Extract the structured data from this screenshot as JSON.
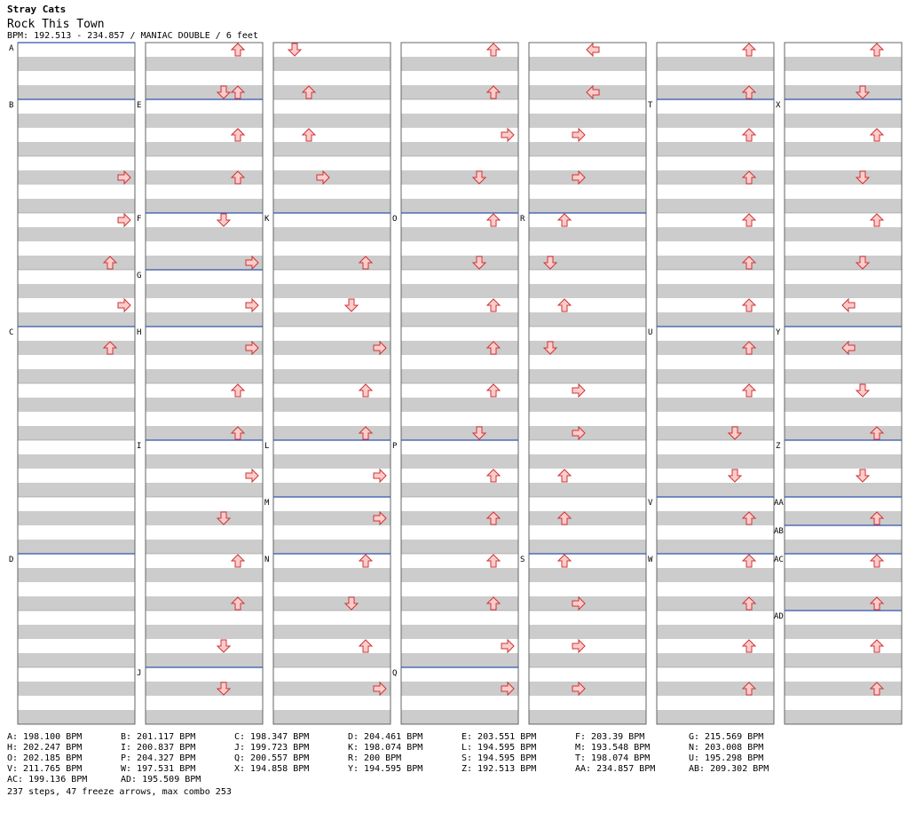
{
  "header": {
    "artist": "Stray Cats",
    "title": "Rock This Town",
    "info": "BPM: 192.513 - 234.857 / MANIAC DOUBLE / 6 feet"
  },
  "colors": {
    "arrow_fill": "#ffcccc",
    "arrow_stroke": "#cc3333",
    "freeze_fill": "#ccffcc",
    "freeze_stroke": "#339933",
    "stripe": "#cccccc",
    "marker": "#3355aa",
    "freeze_head_yellow": "#ffff33"
  },
  "sections": [
    {
      "label": "A",
      "col": 0,
      "beat": 0
    },
    {
      "label": "B",
      "col": 0,
      "beat": 4
    },
    {
      "label": "C",
      "col": 0,
      "beat": 20
    },
    {
      "label": "D",
      "col": 0,
      "beat": 36
    },
    {
      "label": "E",
      "col": 1,
      "beat": 4
    },
    {
      "label": "F",
      "col": 1,
      "beat": 12
    },
    {
      "label": "G",
      "col": 1,
      "beat": 16
    },
    {
      "label": "H",
      "col": 1,
      "beat": 20
    },
    {
      "label": "I",
      "col": 1,
      "beat": 28
    },
    {
      "label": "J",
      "col": 1,
      "beat": 44
    },
    {
      "label": "K",
      "col": 2,
      "beat": 12
    },
    {
      "label": "L",
      "col": 2,
      "beat": 28
    },
    {
      "label": "M",
      "col": 2,
      "beat": 32
    },
    {
      "label": "N",
      "col": 2,
      "beat": 36
    },
    {
      "label": "O",
      "col": 3,
      "beat": 12
    },
    {
      "label": "P",
      "col": 3,
      "beat": 28
    },
    {
      "label": "Q",
      "col": 3,
      "beat": 44
    },
    {
      "label": "R",
      "col": 4,
      "beat": 12
    },
    {
      "label": "S",
      "col": 4,
      "beat": 36
    },
    {
      "label": "T",
      "col": 5,
      "beat": 4
    },
    {
      "label": "U",
      "col": 5,
      "beat": 20
    },
    {
      "label": "V",
      "col": 5,
      "beat": 32
    },
    {
      "label": "W",
      "col": 5,
      "beat": 36
    },
    {
      "label": "X",
      "col": 6,
      "beat": 4
    },
    {
      "label": "Y",
      "col": 6,
      "beat": 20
    },
    {
      "label": "Z",
      "col": 6,
      "beat": 28
    },
    {
      "label": "AA",
      "col": 6,
      "beat": 32
    },
    {
      "label": "AB",
      "col": 6,
      "beat": 34
    },
    {
      "label": "AC",
      "col": 6,
      "beat": 36
    },
    {
      "label": "AD",
      "col": 6,
      "beat": 40
    }
  ],
  "notes": [
    [
      1,
      0,
      6
    ],
    [
      1,
      1,
      6
    ],
    [
      1,
      2,
      6
    ],
    [
      0,
      3,
      7
    ],
    [
      0,
      4,
      7
    ],
    [
      0,
      5,
      6
    ],
    [
      0,
      6,
      7
    ],
    [
      0,
      7,
      6
    ],
    [
      1,
      0,
      6
    ],
    [
      1,
      1,
      5
    ],
    [
      1,
      2,
      6
    ],
    [
      1,
      3,
      6
    ],
    [
      1,
      4,
      5
    ],
    [
      1,
      5,
      7
    ],
    [
      1,
      6,
      7
    ],
    [
      1,
      7,
      7
    ],
    [
      1,
      8,
      6
    ],
    [
      1,
      9,
      6
    ],
    [
      1,
      10,
      7
    ],
    [
      1,
      11,
      5
    ],
    [
      1,
      12,
      6
    ],
    [
      1,
      13,
      6
    ],
    [
      1,
      14,
      5
    ],
    [
      1,
      15,
      5
    ],
    [
      2,
      0,
      1
    ],
    [
      2,
      1,
      2
    ],
    [
      2,
      2,
      2
    ],
    [
      2,
      3,
      3
    ],
    [
      2,
      5,
      6
    ],
    [
      2,
      6,
      5
    ],
    [
      2,
      7,
      7
    ],
    [
      2,
      8,
      6
    ],
    [
      2,
      9,
      6
    ],
    [
      2,
      10,
      7
    ],
    [
      2,
      11,
      7
    ],
    [
      2,
      12,
      6
    ],
    [
      2,
      13,
      5
    ],
    [
      2,
      14,
      6
    ],
    [
      2,
      15,
      7
    ],
    [
      3,
      0,
      6
    ],
    [
      3,
      1,
      6
    ],
    [
      3,
      2,
      7
    ],
    [
      3,
      3,
      5
    ],
    [
      3,
      4,
      6
    ],
    [
      3,
      5,
      5
    ],
    [
      3,
      6,
      6
    ],
    [
      3,
      7,
      6
    ],
    [
      3,
      8,
      6
    ],
    [
      3,
      9,
      5
    ],
    [
      3,
      10,
      6
    ],
    [
      3,
      11,
      6
    ],
    [
      3,
      12,
      6
    ],
    [
      3,
      13,
      6
    ],
    [
      3,
      14,
      7
    ],
    [
      3,
      15,
      7
    ],
    [
      4,
      0,
      4
    ],
    [
      4,
      1,
      4
    ],
    [
      4,
      2,
      3
    ],
    [
      4,
      3,
      3
    ],
    [
      4,
      4,
      2
    ],
    [
      4,
      5,
      1
    ],
    [
      4,
      6,
      2
    ],
    [
      4,
      7,
      1
    ],
    [
      4,
      8,
      3
    ],
    [
      4,
      9,
      3
    ],
    [
      4,
      10,
      2
    ],
    [
      4,
      11,
      2
    ],
    [
      4,
      12,
      2
    ],
    [
      4,
      13,
      3
    ],
    [
      4,
      14,
      3
    ],
    [
      4,
      15,
      3
    ],
    [
      5,
      0,
      6
    ],
    [
      5,
      1,
      6
    ],
    [
      5,
      2,
      6
    ],
    [
      5,
      3,
      6
    ],
    [
      5,
      4,
      6
    ],
    [
      5,
      5,
      6
    ],
    [
      5,
      6,
      6
    ],
    [
      5,
      7,
      6
    ],
    [
      5,
      8,
      6
    ],
    [
      5,
      9,
      5
    ],
    [
      5,
      10,
      5
    ],
    [
      5,
      11,
      6
    ],
    [
      5,
      12,
      6
    ],
    [
      5,
      13,
      6
    ],
    [
      5,
      14,
      6
    ],
    [
      5,
      15,
      6
    ],
    [
      6,
      0,
      6
    ],
    [
      6,
      1,
      5
    ],
    [
      6,
      2,
      6
    ],
    [
      6,
      3,
      5
    ],
    [
      6,
      4,
      6
    ],
    [
      6,
      5,
      5
    ],
    [
      6,
      6,
      4
    ],
    [
      6,
      7,
      4
    ],
    [
      6,
      8,
      5
    ],
    [
      6,
      9,
      6
    ],
    [
      6,
      10,
      5
    ],
    [
      6,
      11,
      6
    ],
    [
      6,
      12,
      6
    ],
    [
      6,
      13,
      6
    ],
    [
      6,
      14,
      6
    ],
    [
      6,
      15,
      6
    ]
  ],
  "bpm_list": [
    [
      "A: 198.100 BPM",
      "B: 201.117 BPM",
      "C: 198.347 BPM",
      "D: 204.461 BPM",
      "E: 203.551 BPM",
      "F: 203.39 BPM",
      "G: 215.569 BPM"
    ],
    [
      "H: 202.247 BPM",
      "I: 200.837 BPM",
      "J: 199.723 BPM",
      "K: 198.074 BPM",
      "L: 194.595 BPM",
      "M: 193.548 BPM",
      "N: 203.008 BPM"
    ],
    [
      "O: 202.185 BPM",
      "P: 204.327 BPM",
      "Q: 200.557 BPM",
      "R: 200 BPM",
      "S: 194.595 BPM",
      "T: 198.074 BPM",
      "U: 195.298 BPM"
    ],
    [
      "V: 211.765 BPM",
      "W: 197.531 BPM",
      "X: 194.858 BPM",
      "Y: 194.595 BPM",
      "Z: 192.513 BPM",
      "AA: 234.857 BPM",
      "AB: 209.302 BPM"
    ],
    [
      "AC: 199.136 BPM",
      "AD: 195.509 BPM"
    ]
  ],
  "summary": "237 steps, 47 freeze arrows, max combo 253"
}
